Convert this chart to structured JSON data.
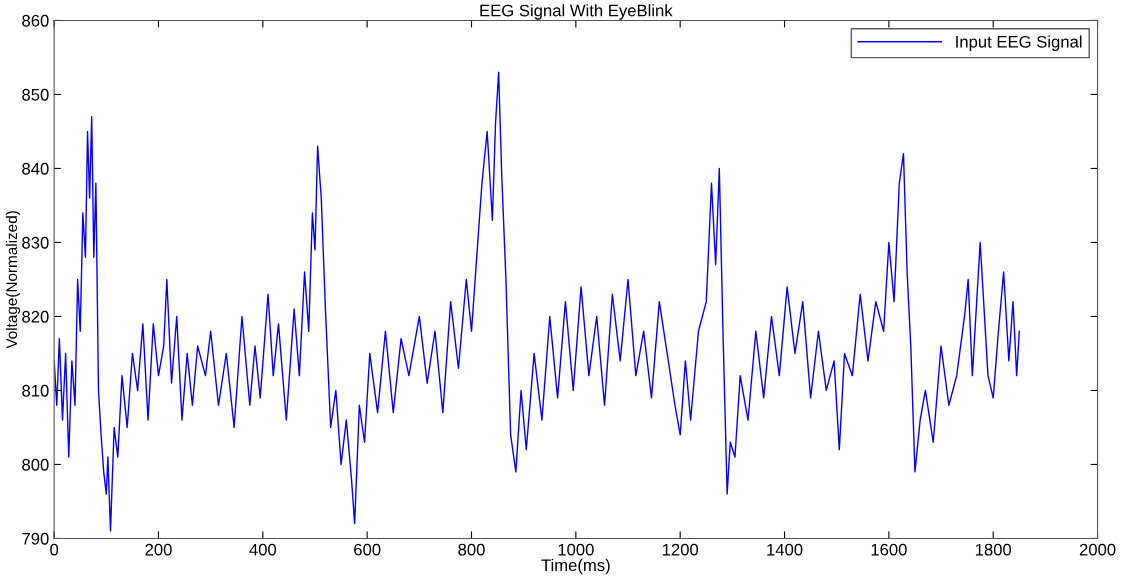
{
  "chart_data": {
    "type": "line",
    "title": "EEG Signal With EyeBlink",
    "xlabel": "Time(ms)",
    "ylabel": "Voltage(Normalized)",
    "legend": "top right",
    "grid": false,
    "xlim": [
      0,
      2000
    ],
    "ylim": [
      790,
      860
    ],
    "xticks": [
      0,
      200,
      400,
      600,
      800,
      1000,
      1200,
      1400,
      1600,
      1800,
      2000
    ],
    "yticks": [
      790,
      800,
      810,
      820,
      830,
      840,
      850,
      860
    ],
    "x": [
      0,
      5,
      10,
      16,
      22,
      28,
      34,
      40,
      45,
      50,
      55,
      60,
      64,
      68,
      72,
      76,
      80,
      85,
      90,
      95,
      100,
      103,
      108,
      115,
      122,
      130,
      140,
      150,
      160,
      170,
      180,
      190,
      200,
      210,
      216,
      225,
      235,
      245,
      255,
      265,
      275,
      290,
      300,
      315,
      330,
      345,
      360,
      375,
      385,
      395,
      410,
      420,
      430,
      445,
      460,
      470,
      480,
      488,
      495,
      500,
      505,
      512,
      520,
      530,
      540,
      550,
      560,
      570,
      576,
      585,
      595,
      605,
      620,
      635,
      650,
      665,
      680,
      700,
      715,
      730,
      745,
      760,
      775,
      790,
      800,
      810,
      820,
      830,
      840,
      846,
      852,
      858,
      866,
      875,
      885,
      895,
      905,
      920,
      935,
      950,
      965,
      980,
      995,
      1010,
      1025,
      1040,
      1055,
      1070,
      1085,
      1100,
      1115,
      1130,
      1145,
      1160,
      1175,
      1190,
      1200,
      1210,
      1220,
      1235,
      1250,
      1260,
      1268,
      1275,
      1282,
      1290,
      1296,
      1305,
      1315,
      1330,
      1345,
      1360,
      1375,
      1390,
      1405,
      1420,
      1435,
      1450,
      1465,
      1480,
      1495,
      1505,
      1515,
      1530,
      1545,
      1560,
      1575,
      1590,
      1600,
      1610,
      1620,
      1628,
      1635,
      1642,
      1650,
      1660,
      1670,
      1685,
      1700,
      1715,
      1730,
      1745,
      1752,
      1760,
      1775,
      1790,
      1800,
      1810,
      1820,
      1830,
      1838,
      1845,
      1850
    ],
    "series": [
      {
        "name": "Input EEG Signal",
        "color": "#0000ff",
        "line_style": "solid",
        "marker": "none",
        "values": [
          814,
          808,
          817,
          806,
          815,
          801,
          814,
          808,
          825,
          818,
          834,
          828,
          845,
          836,
          847,
          828,
          838,
          810,
          804,
          799,
          796,
          801,
          791,
          805,
          801,
          812,
          805,
          815,
          810,
          819,
          806,
          819,
          812,
          816,
          825,
          811,
          820,
          806,
          815,
          808,
          816,
          812,
          818,
          808,
          815,
          805,
          820,
          808,
          816,
          809,
          823,
          812,
          819,
          806,
          821,
          812,
          826,
          818,
          834,
          829,
          843,
          836,
          821,
          805,
          810,
          800,
          806,
          798,
          792,
          808,
          803,
          815,
          807,
          818,
          807,
          817,
          812,
          820,
          811,
          818,
          807,
          822,
          813,
          825,
          818,
          828,
          838,
          845,
          833,
          846,
          853,
          839,
          825,
          804,
          799,
          810,
          802,
          815,
          806,
          820,
          809,
          822,
          810,
          824,
          812,
          820,
          808,
          823,
          814,
          825,
          812,
          818,
          809,
          822,
          815,
          808,
          804,
          814,
          806,
          818,
          822,
          838,
          827,
          840,
          818,
          796,
          803,
          801,
          812,
          806,
          818,
          809,
          820,
          812,
          824,
          815,
          822,
          809,
          818,
          810,
          814,
          802,
          815,
          812,
          823,
          814,
          822,
          818,
          830,
          822,
          838,
          842,
          826,
          816,
          799,
          806,
          810,
          803,
          816,
          808,
          812,
          820,
          825,
          812,
          830,
          812,
          809,
          818,
          826,
          814,
          822,
          812,
          818
        ]
      }
    ]
  }
}
